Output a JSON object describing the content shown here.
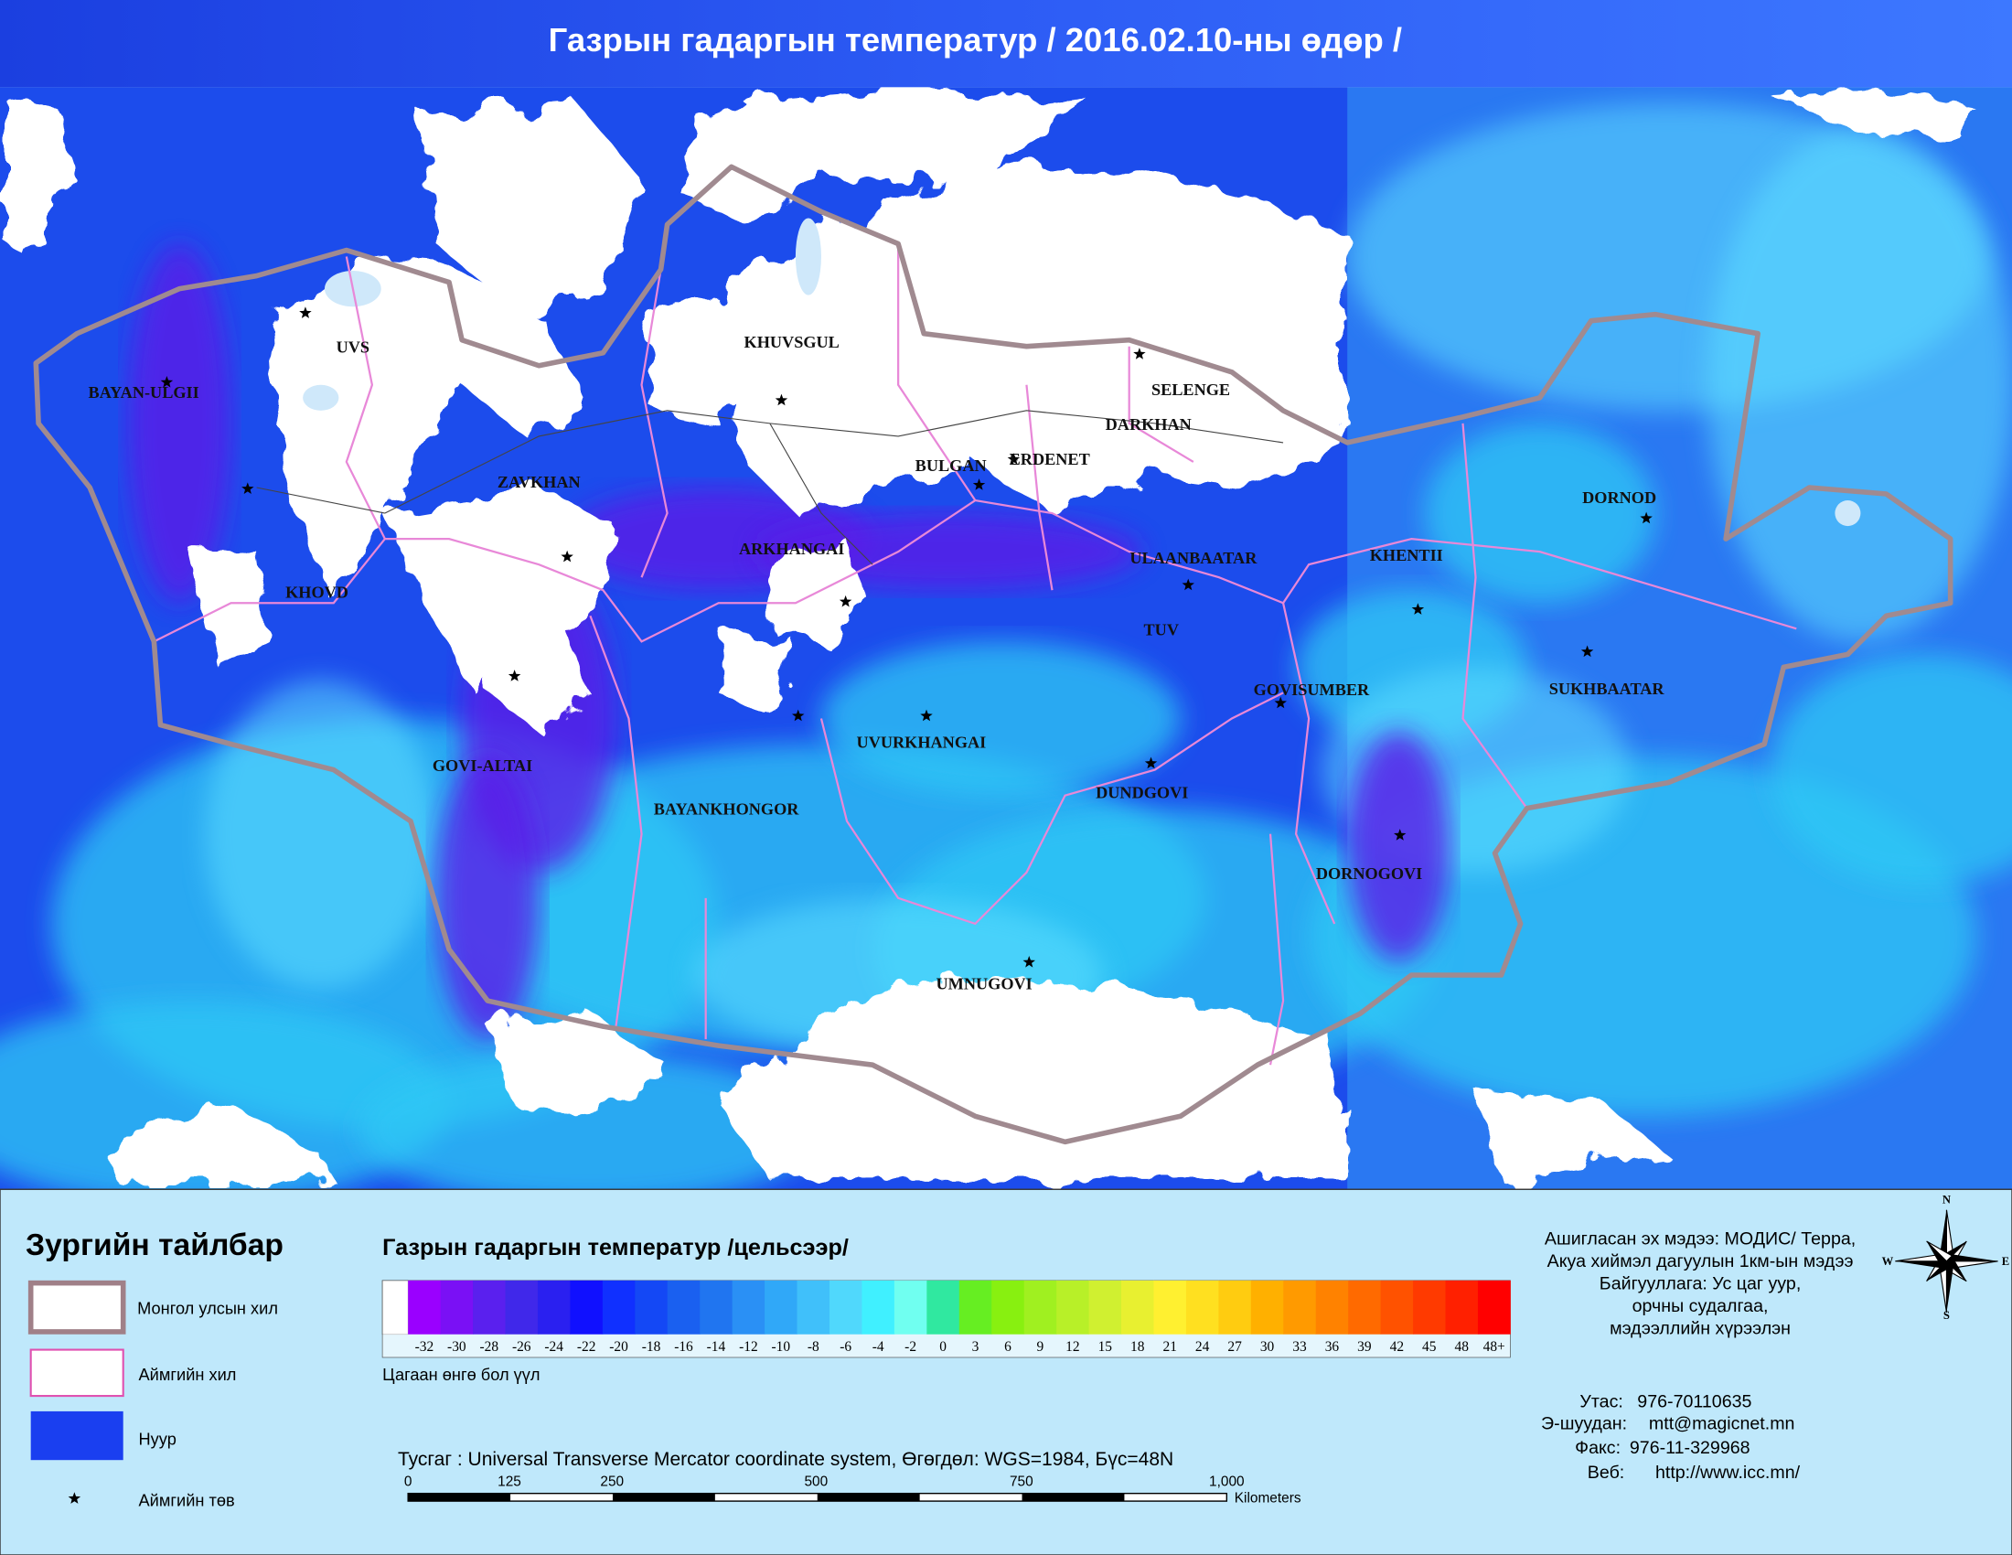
{
  "header": {
    "title": "Газрын гадаргын температур / 2016.02.10-ны өдөр /"
  },
  "map": {
    "provinces": [
      "BAYAN-ULGII",
      "UVS",
      "KHUVSGUL",
      "SELENGE",
      "DARKHAN",
      "BULGAN",
      "ERDENET",
      "ZAVKHAN",
      "ARKHANGAI",
      "ULAANBAATAR",
      "KHENTII",
      "DORNOD",
      "KHOVD",
      "TUV",
      "GOVISUMBER",
      "SUKHBAATAR",
      "UVURKHANGAI",
      "GOVI-ALTAI",
      "BAYANKHONGOR",
      "DUNDGOVI",
      "DORNOGOVI",
      "UMNUGOVI"
    ]
  },
  "legend": {
    "title": "Зургийн тайлбар",
    "items": [
      "Монгол улсын хил",
      "Аймгийн хил",
      "Нуур",
      "Аймгийн төв"
    ],
    "scale": {
      "title": "Газрын гадаргын температур /цельсээр/",
      "labels": [
        "-32",
        "-30",
        "-28",
        "-26",
        "-24",
        "-22",
        "-20",
        "-18",
        "-16",
        "-14",
        "-12",
        "-10",
        "-8",
        "-6",
        "-4",
        "-2",
        "0",
        "3",
        "6",
        "9",
        "12",
        "15",
        "18",
        "21",
        "24",
        "27",
        "30",
        "33",
        "36",
        "39",
        "42",
        "45",
        "48",
        "48+"
      ],
      "colors": [
        "#9a00ff",
        "#7a10f5",
        "#5a20ee",
        "#4028ea",
        "#2a20f0",
        "#1010ff",
        "#1030ff",
        "#1448f5",
        "#1a60f0",
        "#2075f0",
        "#2a90f5",
        "#30a8f8",
        "#40c0fa",
        "#50d8fc",
        "#40f0ff",
        "#70fff0",
        "#30e8a0",
        "#66ee22",
        "#88f010",
        "#a0f020",
        "#b8f028",
        "#d0f030",
        "#e8f030",
        "#fff030",
        "#ffe020",
        "#ffcc10",
        "#ffb000",
        "#ff9a00",
        "#ff8200",
        "#ff6a00",
        "#ff5200",
        "#ff3a00",
        "#ff2000",
        "#ff0000"
      ],
      "note": "Цагаан өнгө бол үүл"
    }
  },
  "projection": "Тусгаг : Universal Transverse Mercator coordinate system, Өгөгдөл: WGS=1984, Бүс=48N",
  "scale_bar": {
    "labels": [
      "0",
      "125",
      "250",
      "500",
      "750",
      "1,000"
    ],
    "unit": "Kilometers"
  },
  "info": {
    "source": [
      "Ашигласан эх мэдээ: МОДИС/ Терра,",
      "Акуа хиймэл дагуулын 1км-ын мэдээ",
      "Байгууллага: Ус цаг уур,",
      "орчны судалгаа,",
      "мэдээллийн хүрээлэн"
    ],
    "contacts": [
      {
        "label": "Утас:",
        "value": "976-70110635"
      },
      {
        "label": "Э-шуудан:",
        "value": "mtt@magicnet.mn"
      },
      {
        "label": "Факс:",
        "value": "976-11-329968"
      },
      {
        "label": "Веб:",
        "value": "http://www.icc.mn/"
      }
    ]
  },
  "compass": [
    "N",
    "E",
    "S",
    "W"
  ]
}
